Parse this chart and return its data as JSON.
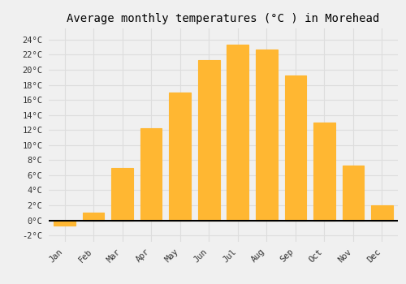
{
  "title": "Average monthly temperatures (°C ) in Morehead",
  "months": [
    "Jan",
    "Feb",
    "Mar",
    "Apr",
    "May",
    "Jun",
    "Jul",
    "Aug",
    "Sep",
    "Oct",
    "Nov",
    "Dec"
  ],
  "temperatures": [
    -0.7,
    1.0,
    7.0,
    12.2,
    17.0,
    21.3,
    23.3,
    22.7,
    19.3,
    13.0,
    7.3,
    2.0
  ],
  "bar_color_top": "#FFB732",
  "bar_color_bottom": "#FFA500",
  "bar_edge_color": "#CC8800",
  "background_color": "#F0F0F0",
  "grid_color": "#DDDDDD",
  "yticks": [
    -2,
    0,
    2,
    4,
    6,
    8,
    10,
    12,
    14,
    16,
    18,
    20,
    22,
    24
  ],
  "ytick_labels": [
    "-2°C",
    "0°C",
    "2°C",
    "4°C",
    "6°C",
    "8°C",
    "10°C",
    "12°C",
    "14°C",
    "16°C",
    "18°C",
    "20°C",
    "22°C",
    "24°C"
  ],
  "ylim": [
    -2.8,
    25.5
  ],
  "title_fontsize": 10,
  "tick_fontsize": 7.5,
  "bar_width": 0.75
}
